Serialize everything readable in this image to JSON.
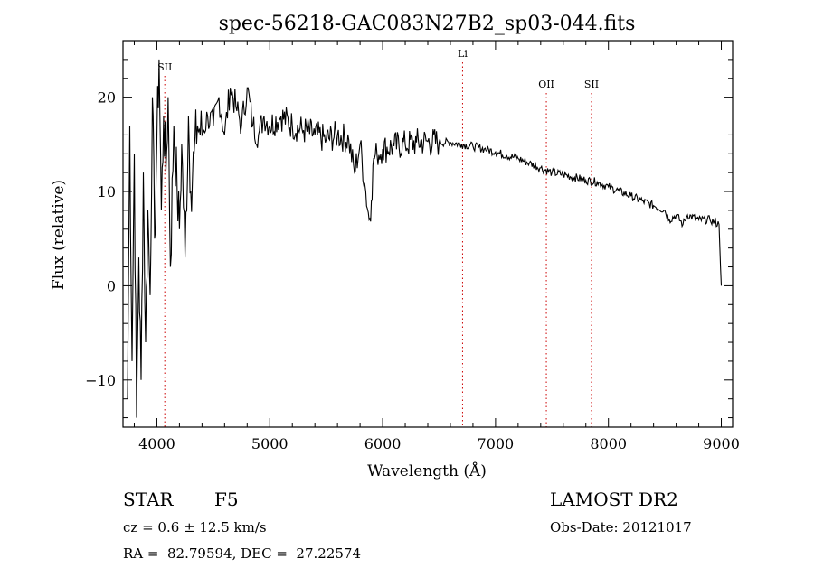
{
  "chart_data": {
    "type": "line",
    "title": "spec-56218-GAC083N27B2_sp03-044.fits",
    "xlabel": "Wavelength (Å)",
    "ylabel": "Flux (relative)",
    "xlim": [
      3700,
      9100
    ],
    "ylim": [
      -15,
      26
    ],
    "xticks": [
      4000,
      5000,
      6000,
      7000,
      8000,
      9000
    ],
    "xtick_labels": [
      "4000",
      "5000",
      "6000",
      "7000",
      "8000",
      "9000"
    ],
    "yticks": [
      -10,
      0,
      10,
      20
    ],
    "ytick_labels": [
      "−10",
      "0",
      "10",
      "20"
    ],
    "grid": false,
    "series": [
      {
        "color": "#000000",
        "x": [
          3740,
          3760,
          3780,
          3800,
          3820,
          3840,
          3860,
          3880,
          3900,
          3920,
          3940,
          3960,
          3980,
          4000,
          4020,
          4040,
          4060,
          4080,
          4100,
          4120,
          4150,
          4180,
          4200,
          4220,
          4250,
          4280,
          4300,
          4330,
          4360,
          4400,
          4450,
          4500,
          4550,
          4600,
          4650,
          4700,
          4750,
          4800,
          4850,
          4900,
          4950,
          5000,
          5100,
          5200,
          5300,
          5400,
          5500,
          5600,
          5700,
          5750,
          5800,
          5850,
          5880,
          5900,
          5920,
          5950,
          6000,
          6100,
          6200,
          6300,
          6400,
          6500,
          6600,
          6700,
          6800,
          6900,
          7000,
          7100,
          7200,
          7300,
          7400,
          7500,
          7600,
          7700,
          7800,
          7900,
          8000,
          8100,
          8200,
          8300,
          8400,
          8500,
          8540,
          8600,
          8660,
          8700,
          8800,
          8900,
          8980,
          9000
        ],
        "y": [
          -12,
          17,
          -8,
          14,
          -14,
          3,
          -10,
          12,
          -6,
          8,
          -1,
          20,
          5,
          15,
          24,
          8,
          18,
          12,
          20,
          2,
          17,
          10,
          6,
          15,
          3,
          18,
          10,
          14,
          17,
          16,
          18,
          17,
          20,
          16,
          21,
          19,
          17,
          21,
          17,
          16,
          18,
          17,
          18,
          17,
          16.5,
          16,
          15.5,
          16,
          15.5,
          12,
          15,
          10,
          7,
          9,
          13.5,
          14,
          14.5,
          14.8,
          15,
          15.2,
          15.3,
          15.2,
          15.2,
          15,
          14.8,
          14.5,
          14.2,
          13.8,
          13.5,
          13,
          12.5,
          12,
          11.8,
          11.5,
          11.2,
          11,
          10.5,
          10,
          9.5,
          9,
          8.5,
          8,
          7,
          7.5,
          6.5,
          7.5,
          7,
          7,
          6.5,
          0
        ]
      }
    ],
    "annotations": [
      {
        "label": "SII",
        "x": 4070,
        "color": "#cc0000"
      },
      {
        "label": "Li",
        "x": 6708,
        "color": "#cc0000"
      },
      {
        "label": "OII",
        "x": 7450,
        "color": "#cc0000"
      },
      {
        "label": "SII",
        "x": 7850,
        "color": "#cc0000"
      }
    ]
  },
  "info": {
    "object_class": "STAR",
    "subclass": "F5",
    "survey": "LAMOST DR2",
    "redshift": "cz = 0.6 ± 12.5 km/s",
    "obs_date": "Obs-Date: 20121017",
    "coordinates": "RA =  82.79594, DEC =  27.22574"
  }
}
